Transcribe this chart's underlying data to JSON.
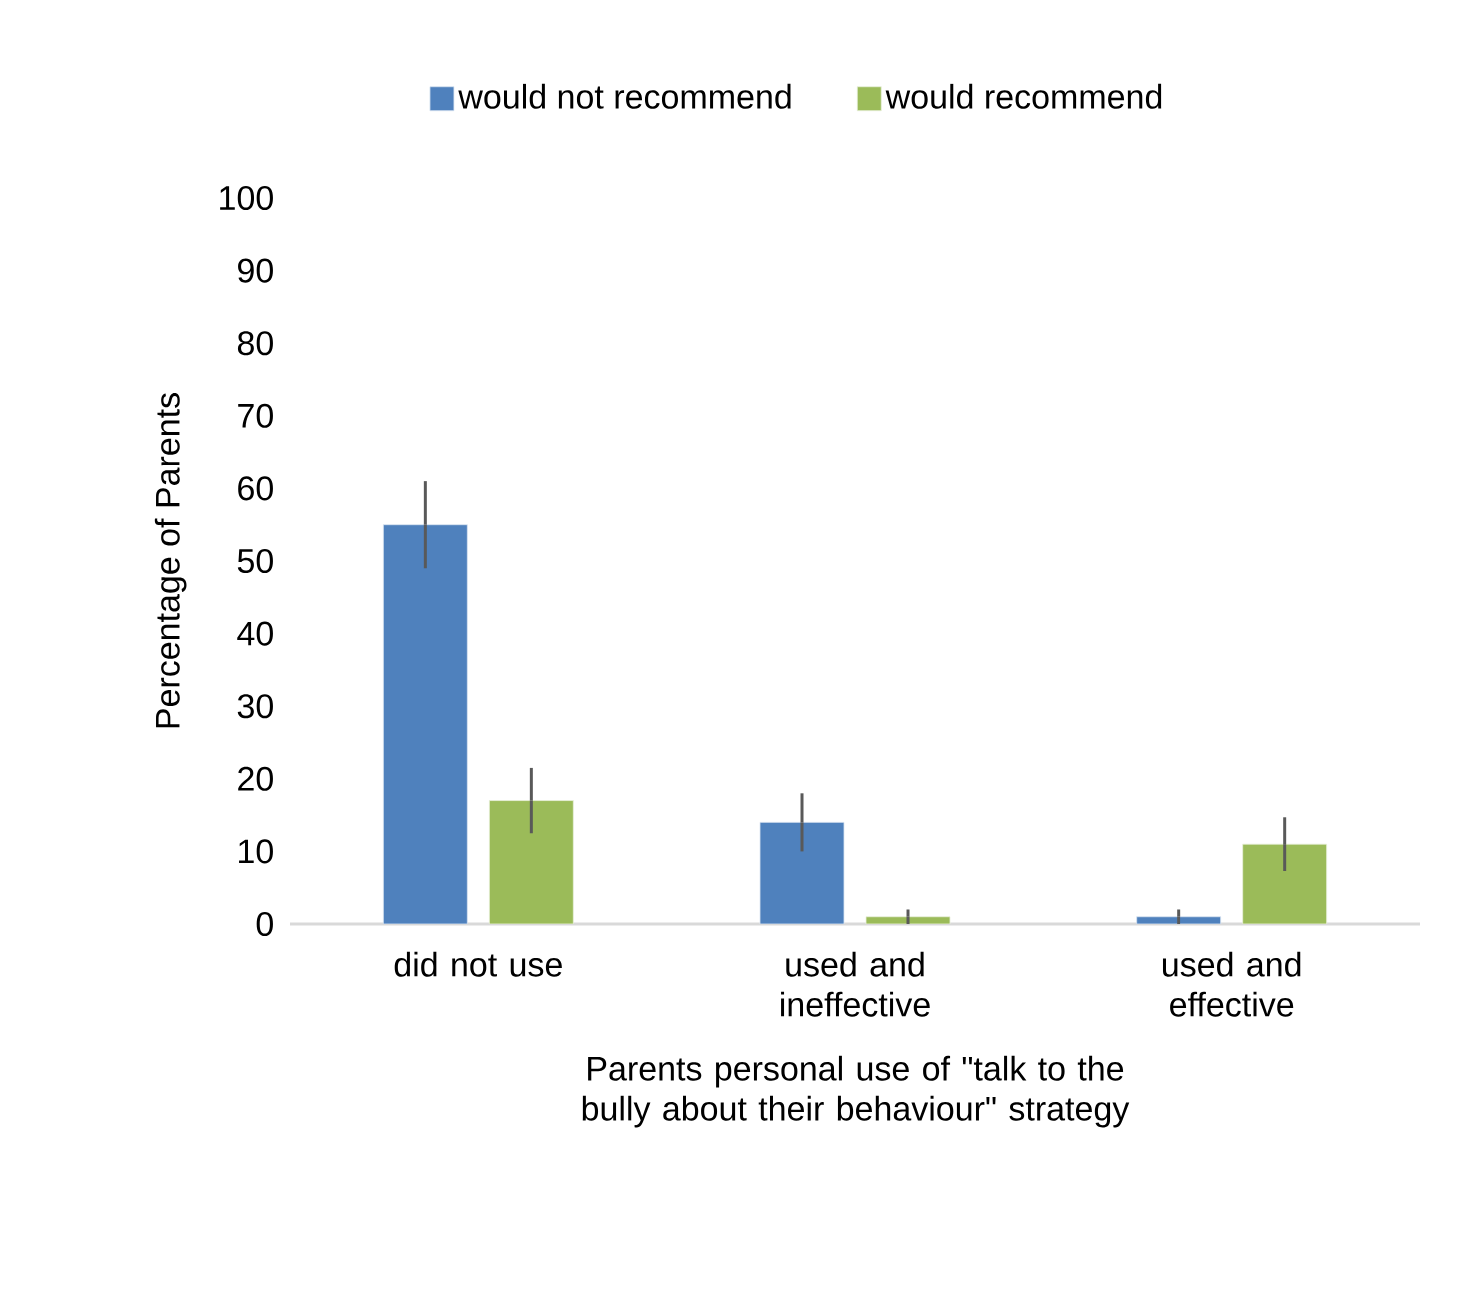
{
  "chart_data": {
    "type": "bar",
    "xlabel": "Parents personal use of \"talk to the bully about their behaviour\" strategy",
    "ylabel": "Percentage of Parents",
    "categories": [
      "did not use",
      "used and ineffective",
      "used and effective"
    ],
    "series": [
      {
        "name": "would not recommend",
        "color": "#4f81bd",
        "values": [
          55,
          14,
          1
        ],
        "errors": [
          6,
          4,
          1
        ]
      },
      {
        "name": "would recommend",
        "color": "#9bbb59",
        "values": [
          17,
          1,
          11
        ],
        "errors": [
          4.5,
          1,
          3.7
        ]
      }
    ],
    "ylim": [
      0,
      100
    ],
    "yticks": [
      0,
      10,
      20,
      30,
      40,
      50,
      60,
      70,
      80,
      90,
      100
    ],
    "legend": "top"
  }
}
